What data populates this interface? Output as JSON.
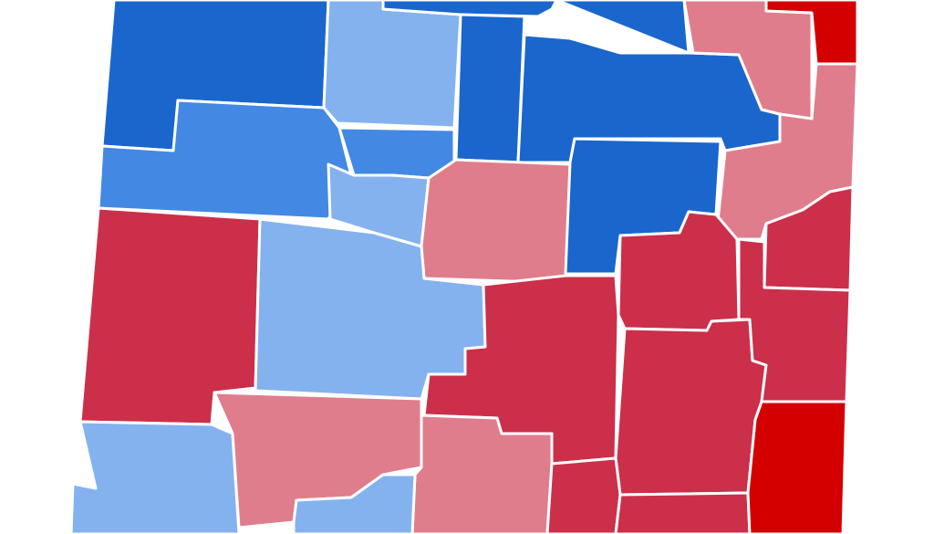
{
  "map": {
    "type": "choropleth",
    "background": "#ffffff",
    "border_color": "#ffffff",
    "palette": {
      "dem_strong": "#1a66cc",
      "dem_medium": "#4389e3",
      "dem_light": "#84b2ef",
      "rep_light": "#e07d8d",
      "rep_medium": "#cc2f4a",
      "rep_strong": "#d40000"
    },
    "counties": [
      {
        "id": "nw-1",
        "shade": "dem_strong"
      },
      {
        "id": "n-1",
        "shade": "dem_light"
      },
      {
        "id": "n-2",
        "shade": "dem_strong"
      },
      {
        "id": "n-3",
        "shade": "dem_strong"
      },
      {
        "id": "ne-1",
        "shade": "dem_strong"
      },
      {
        "id": "ne-2",
        "shade": "rep_light"
      },
      {
        "id": "ne-corner",
        "shade": "rep_strong"
      },
      {
        "id": "w-1",
        "shade": "dem_medium"
      },
      {
        "id": "c-1",
        "shade": "dem_medium"
      },
      {
        "id": "c-2",
        "shade": "dem_light"
      },
      {
        "id": "c-3",
        "shade": "rep_light"
      },
      {
        "id": "c-4",
        "shade": "dem_strong"
      },
      {
        "id": "e-1",
        "shade": "rep_light"
      },
      {
        "id": "e-2",
        "shade": "rep_medium"
      },
      {
        "id": "e-3",
        "shade": "rep_medium"
      },
      {
        "id": "sw-1",
        "shade": "rep_medium"
      },
      {
        "id": "c-5",
        "shade": "dem_light"
      },
      {
        "id": "c-6",
        "shade": "rep_medium"
      },
      {
        "id": "c-7",
        "shade": "rep_medium"
      },
      {
        "id": "e-4",
        "shade": "rep_medium"
      },
      {
        "id": "s-1",
        "shade": "dem_light"
      },
      {
        "id": "s-2",
        "shade": "rep_light"
      },
      {
        "id": "s-3",
        "shade": "rep_light"
      },
      {
        "id": "s-4",
        "shade": "rep_medium"
      },
      {
        "id": "se-1",
        "shade": "rep_strong"
      },
      {
        "id": "s-5",
        "shade": "dem_light"
      },
      {
        "id": "s-6",
        "shade": "rep_medium"
      }
    ]
  }
}
